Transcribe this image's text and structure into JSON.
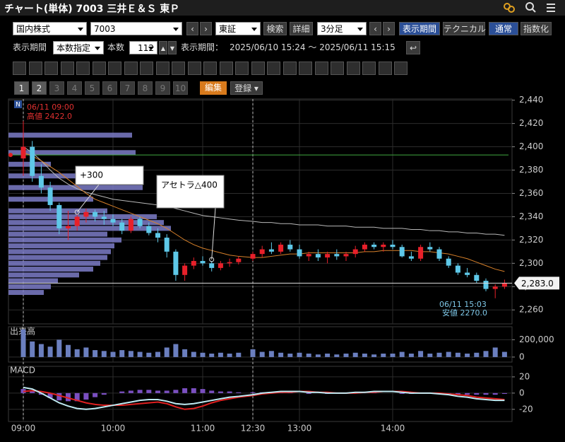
{
  "header": {
    "title": "チャート(単体) 7003 三井Ｅ＆Ｓ 東Ｐ"
  },
  "toolbar": {
    "market": "国内株式",
    "code": "7003",
    "exchange": "東証",
    "search": "検索",
    "detail": "詳細",
    "interval": "3分足",
    "period_button": "表示期間",
    "technical": "テクニカル",
    "normal": "通常",
    "index_mode": "指数化"
  },
  "range_bar": {
    "period_label": "表示期間",
    "mode": "本数指定",
    "count_label": "本数",
    "count": 112,
    "period_prefix": "表示期間：",
    "period": "2025/06/10 15:24 ～ 2025/06/11 15:15"
  },
  "tabs": {
    "pages": [
      "1",
      "2",
      "3",
      "4",
      "5",
      "6",
      "7",
      "8",
      "9",
      "10"
    ],
    "edit": "編集",
    "register": "登録"
  },
  "chart_data": {
    "type": "candlestick",
    "categories": [
      "09:00",
      null,
      null,
      null,
      null,
      null,
      null,
      null,
      null,
      null,
      "10:00",
      null,
      null,
      null,
      null,
      null,
      null,
      null,
      null,
      null,
      "11:00",
      null,
      null,
      null,
      null,
      "12:30",
      null,
      null,
      null,
      null,
      "13:00",
      null,
      null,
      null,
      null,
      null,
      null,
      null,
      null,
      null,
      "14:00",
      null,
      null,
      null,
      null,
      null,
      null,
      null,
      null,
      null,
      null,
      null,
      null
    ],
    "open": [
      2390,
      2400,
      2375,
      2365,
      2350,
      2330,
      2332,
      2340,
      2344,
      2340,
      2338,
      2335,
      2328,
      2338,
      2332,
      2326,
      2322,
      2310,
      2290,
      2298,
      2302,
      2300,
      2296,
      2300,
      2301,
      2304,
      2308,
      2312,
      2310,
      2316,
      2312,
      2306,
      2308,
      2305,
      2308,
      2306,
      2308,
      2312,
      2316,
      2314,
      2316,
      2314,
      2306,
      2304,
      2314,
      2312,
      2304,
      2298,
      2292,
      2290,
      2285,
      2278,
      2280
    ],
    "high": [
      2422,
      2405,
      2385,
      2370,
      2352,
      2345,
      2342,
      2347,
      2346,
      2345,
      2342,
      2338,
      2340,
      2340,
      2335,
      2330,
      2325,
      2312,
      2300,
      2305,
      2306,
      2302,
      2302,
      2304,
      2306,
      2310,
      2315,
      2318,
      2318,
      2320,
      2316,
      2310,
      2312,
      2310,
      2312,
      2310,
      2315,
      2318,
      2318,
      2318,
      2320,
      2316,
      2310,
      2316,
      2318,
      2314,
      2306,
      2300,
      2296,
      2292,
      2287,
      2282,
      2286
    ],
    "low": [
      2375,
      2370,
      2360,
      2345,
      2325,
      2320,
      2328,
      2335,
      2336,
      2333,
      2332,
      2325,
      2326,
      2330,
      2324,
      2318,
      2305,
      2285,
      2285,
      2295,
      2298,
      2293,
      2294,
      2297,
      2299,
      2302,
      2305,
      2308,
      2308,
      2310,
      2304,
      2302,
      2302,
      2300,
      2303,
      2302,
      2305,
      2310,
      2312,
      2310,
      2312,
      2305,
      2302,
      2302,
      2310,
      2302,
      2296,
      2290,
      2288,
      2283,
      2276,
      2270,
      2278
    ],
    "close": [
      2400,
      2375,
      2365,
      2350,
      2330,
      2332,
      2340,
      2344,
      2340,
      2338,
      2335,
      2328,
      2338,
      2332,
      2326,
      2322,
      2310,
      2290,
      2298,
      2302,
      2300,
      2296,
      2300,
      2301,
      2304,
      2308,
      2312,
      2310,
      2316,
      2312,
      2306,
      2308,
      2305,
      2308,
      2306,
      2308,
      2312,
      2316,
      2314,
      2316,
      2314,
      2306,
      2304,
      2314,
      2312,
      2304,
      2298,
      2292,
      2290,
      2285,
      2278,
      2280,
      2283
    ],
    "up_color": "#e8202a",
    "down_color": "#5ec8e8",
    "ylim": [
      2248,
      2441
    ],
    "yticks": [
      {
        "value": 2260,
        "label": "2,260"
      },
      {
        "value": 2280,
        "label": "2,280"
      },
      {
        "value": 2300,
        "label": "2,300"
      },
      {
        "value": 2320,
        "label": "2,320"
      },
      {
        "value": 2340,
        "label": "2,340"
      },
      {
        "value": 2360,
        "label": "2,360"
      },
      {
        "value": 2380,
        "label": "2,380"
      },
      {
        "value": 2400,
        "label": "2,400"
      },
      {
        "value": 2420,
        "label": "2,420"
      },
      {
        "value": 2440,
        "label": "2,440"
      }
    ],
    "grid": true,
    "moving_averages": [
      {
        "color": "#b8b8b8",
        "values": [
          2400,
          2395,
          2388,
          2380,
          2373,
          2368,
          2364,
          2361,
          2359,
          2357,
          2355,
          2354,
          2353,
          2352,
          2351,
          2350,
          2349,
          2347,
          2345,
          2343,
          2341,
          2340,
          2339,
          2338,
          2337,
          2336,
          2335,
          2335,
          2334,
          2334,
          2333,
          2333,
          2333,
          2332,
          2332,
          2332,
          2331,
          2331,
          2331,
          2330,
          2330,
          2330,
          2329,
          2329,
          2328,
          2328,
          2327,
          2327,
          2326,
          2326,
          2325,
          2325,
          2324
        ]
      },
      {
        "color": "#d8812a",
        "values": [
          2395,
          2392,
          2388,
          2383,
          2378,
          2372,
          2366,
          2360,
          2355,
          2352,
          2349,
          2346,
          2343,
          2340,
          2337,
          2334,
          2330,
          2325,
          2320,
          2316,
          2313,
          2311,
          2309,
          2307,
          2306,
          2305,
          2305,
          2306,
          2307,
          2308,
          2308,
          2309,
          2309,
          2309,
          2309,
          2309,
          2309,
          2310,
          2310,
          2311,
          2311,
          2311,
          2311,
          2310,
          2310,
          2309,
          2308,
          2306,
          2304,
          2301,
          2298,
          2295,
          2293
        ]
      }
    ],
    "reference_lines": [
      {
        "value": 2393,
        "color": "#3fa83f"
      }
    ],
    "current_price": {
      "value": 2283,
      "label": "2,283.0"
    },
    "volume_profile": {
      "color": "#7c7cc8",
      "prices": [
        2410,
        2395,
        2385,
        2375,
        2365,
        2355,
        2345,
        2340,
        2335,
        2330,
        2325,
        2320,
        2315,
        2310,
        2305,
        2300,
        2295,
        2290,
        2285,
        2280,
        2275
      ],
      "values": [
        175000,
        180000,
        60000,
        190000,
        190000,
        120000,
        140000,
        210000,
        220000,
        230000,
        140000,
        160000,
        150000,
        145000,
        140000,
        130000,
        120000,
        100000,
        70000,
        60000,
        50000
      ]
    },
    "annotations": {
      "badge": "N",
      "high_time": "06/11 09:00",
      "high_label": "高値 2422.0",
      "low_time": "06/11 15:03",
      "low_label": "安値 2270.0",
      "note_1": "+300",
      "note_2": "アセトラ△400"
    },
    "volume": {
      "title": "出来高",
      "color": "#6b7fbf",
      "values": [
        320000,
        180000,
        150000,
        120000,
        200000,
        140000,
        90000,
        110000,
        80000,
        70000,
        60000,
        80000,
        70000,
        60000,
        50000,
        60000,
        110000,
        150000,
        90000,
        60000,
        50000,
        40000,
        50000,
        40000,
        50000,
        90000,
        60000,
        70000,
        50000,
        40000,
        50000,
        40000,
        30000,
        40000,
        30000,
        40000,
        50000,
        40000,
        30000,
        40000,
        40000,
        60000,
        40000,
        70000,
        40000,
        50000,
        60000,
        50000,
        40000,
        50000,
        70000,
        110000,
        60000
      ],
      "ylim": [
        -58000,
        350000
      ],
      "yticks": [
        0,
        {
          "value": 200000,
          "label": "200,000"
        }
      ]
    },
    "macd": {
      "title": "MACD",
      "ylim": [
        -35,
        33
      ],
      "yticks": [
        -20,
        0,
        20
      ],
      "macd": {
        "color": "#bfeaf2",
        "values": [
          7,
          5,
          0,
          -6,
          -12,
          -16,
          -19,
          -20,
          -19,
          -17,
          -15,
          -13,
          -11,
          -9,
          -8,
          -8,
          -10,
          -13,
          -14,
          -13,
          -11,
          -9,
          -7,
          -5,
          -4,
          -2,
          0,
          1,
          2,
          2,
          2,
          1,
          1,
          0,
          0,
          0,
          1,
          1,
          2,
          2,
          2,
          1,
          0,
          0,
          0,
          -1,
          -2,
          -4,
          -5,
          -7,
          -8,
          -9,
          -9
        ]
      },
      "signal": {
        "color": "#e02020",
        "values": [
          2,
          3,
          2,
          0,
          -3,
          -6,
          -9,
          -12,
          -14,
          -15,
          -15,
          -15,
          -14,
          -13,
          -12,
          -11,
          -13,
          -17,
          -20,
          -19,
          -16,
          -12,
          -9,
          -7,
          -5,
          -3,
          -1,
          0,
          1,
          1,
          2,
          2,
          1,
          1,
          0,
          0,
          0,
          1,
          1,
          2,
          2,
          2,
          1,
          0,
          0,
          0,
          -1,
          -2,
          -3,
          -5,
          -6,
          -7,
          -8
        ]
      },
      "histogram": {
        "color": "#7a4fc0",
        "values": [
          5,
          2,
          -2,
          -6,
          -9,
          -10,
          -10,
          -8,
          -5,
          -2,
          0,
          2,
          3,
          4,
          4,
          3,
          3,
          4,
          6,
          6,
          5,
          3,
          2,
          2,
          1,
          1,
          1,
          1,
          1,
          1,
          0,
          -1,
          0,
          -1,
          0,
          0,
          1,
          0,
          1,
          0,
          0,
          -1,
          -1,
          0,
          0,
          -1,
          -1,
          -2,
          -2,
          -2,
          -2,
          -2,
          -1
        ]
      }
    }
  }
}
